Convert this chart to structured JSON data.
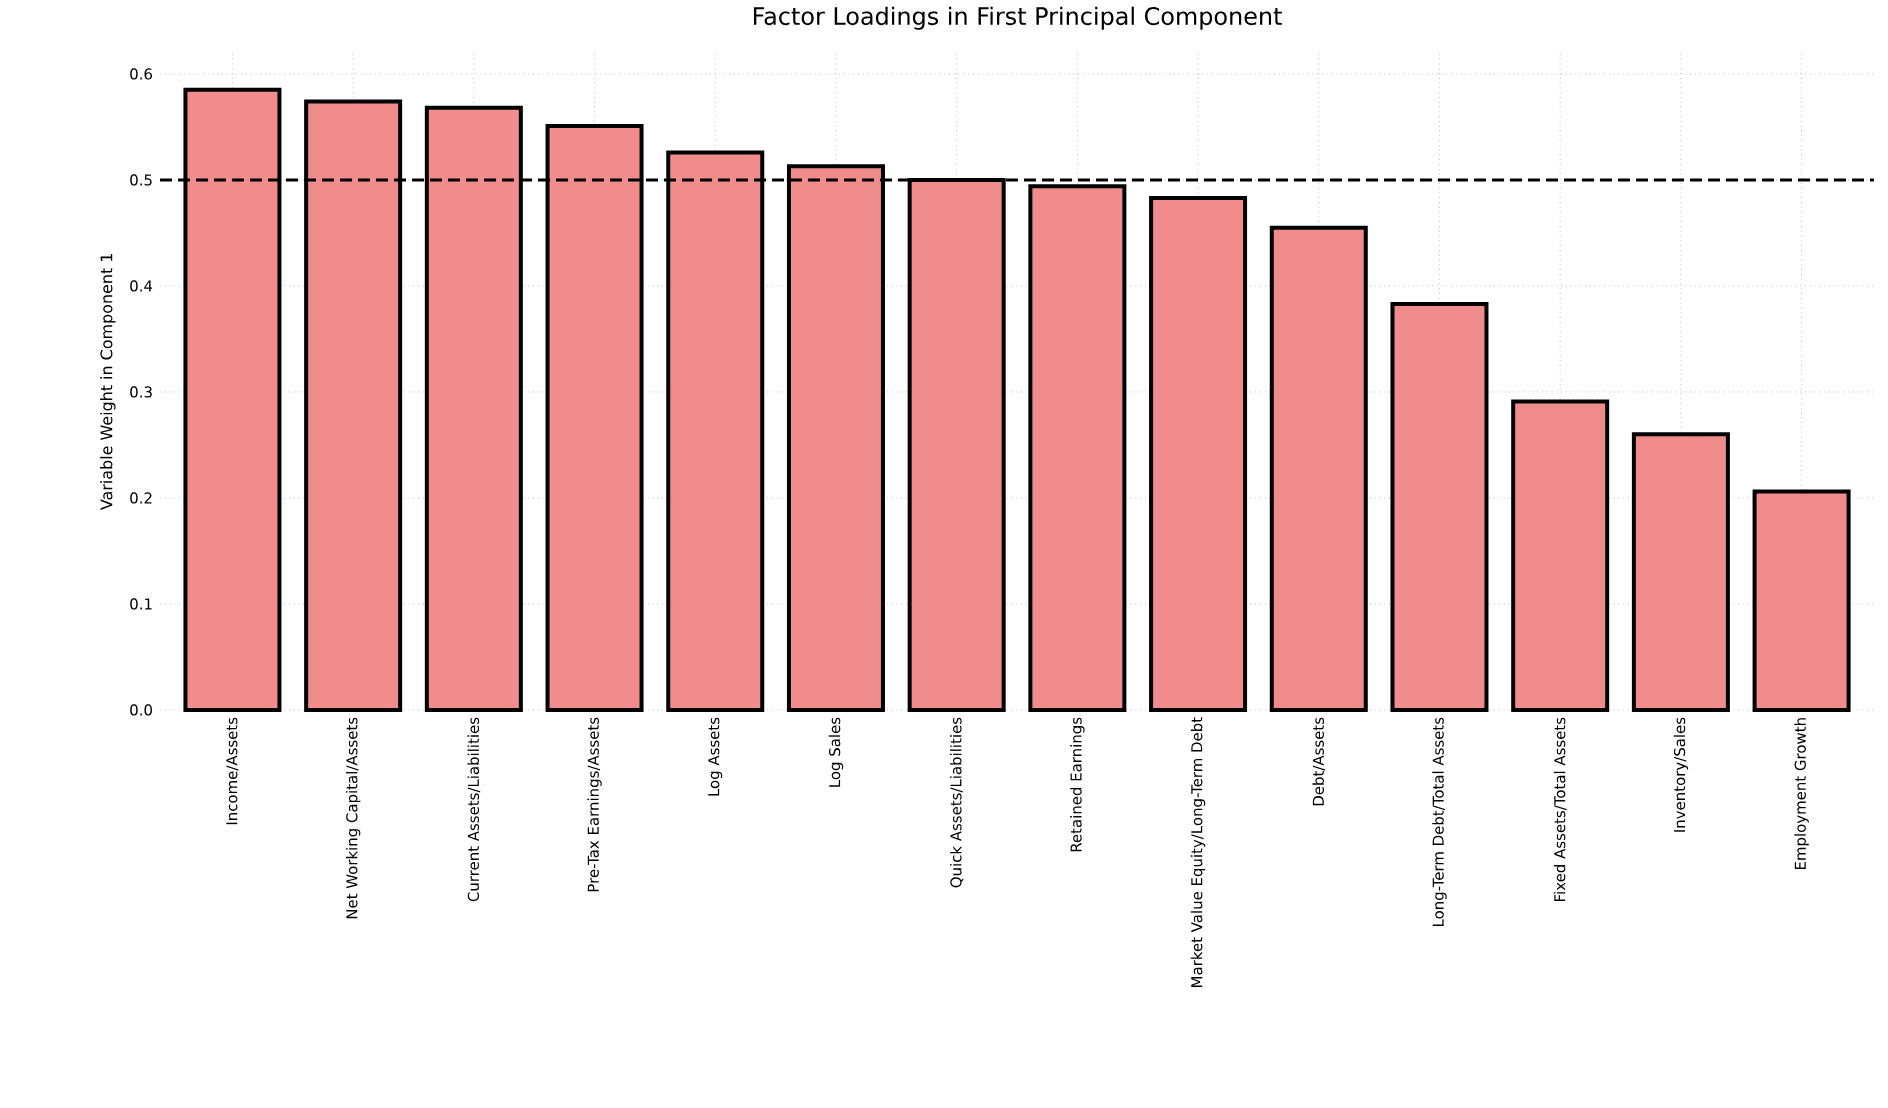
{
  "chart_data": {
    "type": "bar",
    "title": "Factor Loadings in First Principal Component",
    "ylabel": "Variable Weight in Component 1",
    "categories": [
      "Income/Assets",
      "Net Working Capital/Assets",
      "Current Assets/Liabilities",
      "Pre-Tax Earnings/Assets",
      "Log Assets",
      "Log Sales",
      "Quick Assets/Liabilities",
      "Retained Earnings",
      "Market Value Equity/Long-Term Debt",
      "Debt/Assets",
      "Long-Term Debt/Total Assets",
      "Fixed Assets/Total Assets",
      "Inventory/Sales",
      "Employment Growth"
    ],
    "values": [
      0.585,
      0.574,
      0.568,
      0.551,
      0.526,
      0.513,
      0.5,
      0.494,
      0.483,
      0.455,
      0.383,
      0.291,
      0.26,
      0.206
    ],
    "color": "#f08c8c",
    "ylim": [
      0,
      0.62
    ],
    "yticks": [
      {
        "value": 0,
        "label": "0.0"
      },
      0.1,
      0.2,
      0.3,
      0.4,
      0.5,
      0.6
    ],
    "grid": true,
    "ref_lines": [
      {
        "axis": "y",
        "value": 0.5,
        "color": "#000000",
        "line_style": "dashed"
      }
    ]
  }
}
